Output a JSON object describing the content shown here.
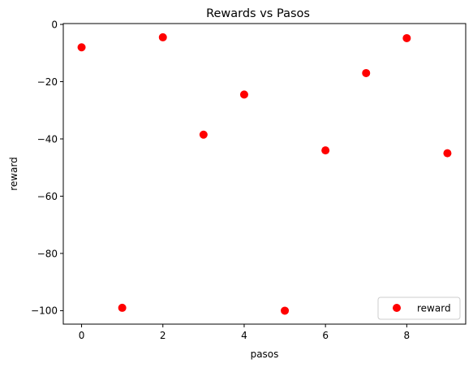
{
  "chart_data": {
    "type": "scatter",
    "title": "Rewards vs Pasos",
    "xlabel": "pasos",
    "ylabel": "reward",
    "xlim": [
      -0.45,
      9.45
    ],
    "ylim": [
      -104.7,
      0.3
    ],
    "xticks": [
      0,
      2,
      4,
      6,
      8
    ],
    "yticks": [
      0,
      -20,
      -40,
      -60,
      -80,
      -100
    ],
    "xtick_labels": [
      "0",
      "2",
      "4",
      "6",
      "8"
    ],
    "ytick_labels": [
      "0",
      "−20",
      "−40",
      "−60",
      "−80",
      "−100"
    ],
    "grid": false,
    "legend_position": "lower-right",
    "series": [
      {
        "name": "reward",
        "color": "#ff0000",
        "marker": "circle",
        "x": [
          0,
          1,
          2,
          3,
          4,
          5,
          6,
          7,
          8,
          9
        ],
        "y": [
          -8,
          -99,
          -4.5,
          -38.5,
          -24.5,
          -100,
          -44,
          -17,
          -4.8,
          -45
        ]
      }
    ]
  }
}
